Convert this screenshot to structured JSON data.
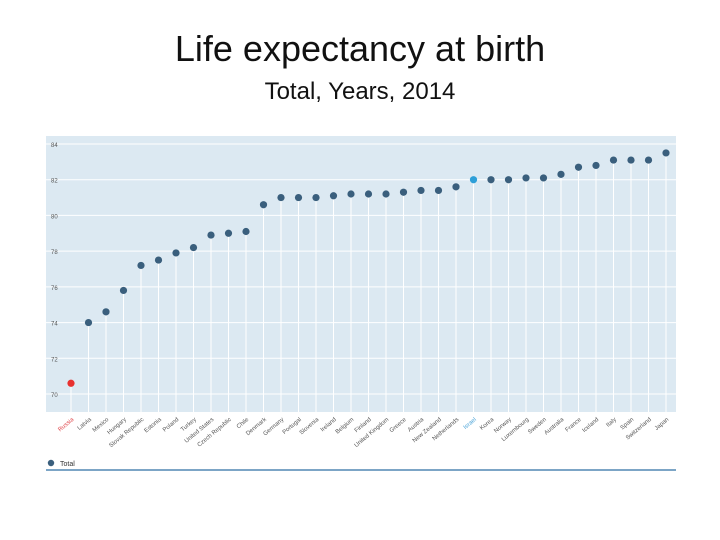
{
  "header": {
    "title": "Life expectancy at birth",
    "subtitle": "Total, Years, 2014"
  },
  "colors": {
    "panel": "#dce9f2",
    "grid": "#ffffff",
    "series": "#3a5f7d",
    "highlight_red": "#e8312f",
    "highlight_blue": "#2e9fd8",
    "tick_text": "#555555",
    "red_label": "#e0474c",
    "blue_label": "#4aa3d8",
    "axis_line": "#2d6fa3"
  },
  "chart_data": {
    "type": "scatter",
    "title": "Life expectancy at birth",
    "subtitle": "Total, Years, 2014",
    "xlabel": "",
    "ylabel": "",
    "ylim": [
      70,
      84
    ],
    "yticks": [
      70,
      72,
      74,
      76,
      78,
      80,
      82,
      84
    ],
    "grid": true,
    "legend_position": "bottom-left",
    "legend": [
      "Total"
    ],
    "categories": [
      "Russia",
      "Latvia",
      "Mexico",
      "Hungary",
      "Slovak Republic",
      "Estonia",
      "Poland",
      "Turkey",
      "United States",
      "Czech Republic",
      "Chile",
      "Denmark",
      "Germany",
      "Portugal",
      "Slovenia",
      "Ireland",
      "Belgium",
      "Finland",
      "United Kingdom",
      "Greece",
      "Austria",
      "New Zealand",
      "Netherlands",
      "Israel",
      "Korea",
      "Norway",
      "Luxembourg",
      "Sweden",
      "Australia",
      "France",
      "Iceland",
      "Italy",
      "Spain",
      "Switzerland",
      "Japan"
    ],
    "series": [
      {
        "name": "Total",
        "values": [
          70.6,
          74.0,
          74.6,
          75.8,
          77.2,
          77.5,
          77.9,
          78.2,
          78.9,
          79.0,
          79.1,
          80.6,
          81.0,
          81.0,
          81.0,
          81.1,
          81.2,
          81.2,
          81.2,
          81.3,
          81.4,
          81.4,
          81.6,
          82.0,
          82.0,
          82.0,
          82.1,
          82.1,
          82.3,
          82.7,
          82.8,
          83.1,
          83.1,
          83.1,
          83.5
        ]
      }
    ],
    "highlights": {
      "red": "Russia",
      "blue": "Israel"
    }
  }
}
